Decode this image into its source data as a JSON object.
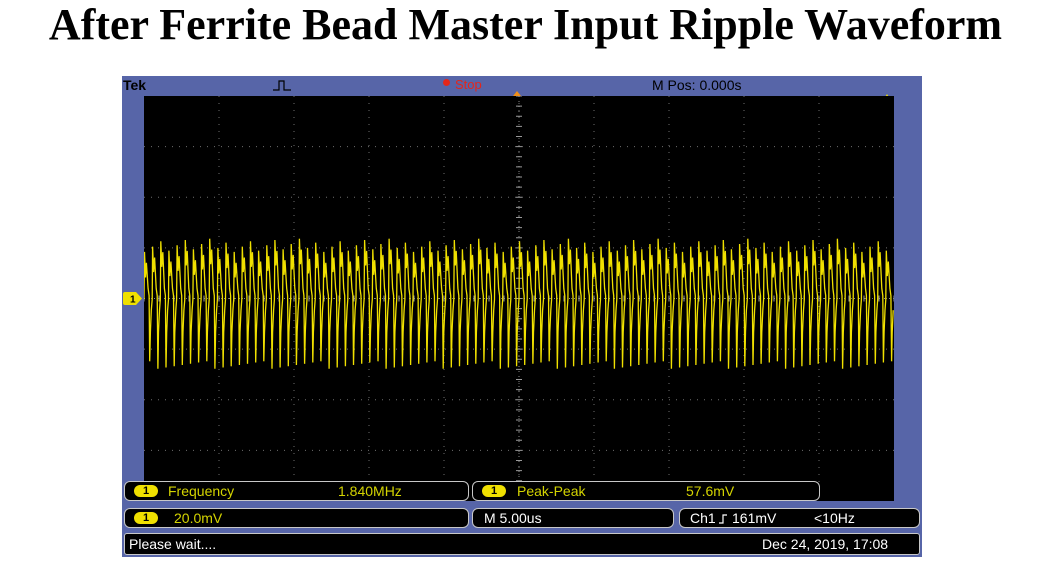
{
  "title": "After Ferrite Bead Master Input Ripple Waveform",
  "scope": {
    "brand": "Tek",
    "run_state": "Stop",
    "horizontal_position": "M Pos: 0.000s",
    "trigger_mode_icon": "pulse-icon",
    "trigger_position_icon": "trigger-position-icon",
    "channel_marker": "1",
    "colors": {
      "frame": "#5765a8",
      "trace": "#f0e000",
      "stop": "#e4261a",
      "trigger_marker": "#f0901a"
    }
  },
  "measurements": [
    {
      "channel": "1",
      "name": "Frequency",
      "value": "1.840MHz"
    },
    {
      "channel": "1",
      "name": "Peak-Peak",
      "value": "57.6mV"
    }
  ],
  "settings": {
    "channel": "1",
    "vertical_scale": "20.0mV",
    "timebase": "M 5.00us",
    "trigger": {
      "source": "Ch1",
      "slope_icon": "rising-edge-icon",
      "level": "161mV",
      "frequency": "<10Hz"
    }
  },
  "status": {
    "message": "Please wait....",
    "datetime": "Dec 24, 2019, 17:08"
  },
  "chart_data": {
    "type": "line",
    "x_unit": "us",
    "x_divisions": 10,
    "us_per_division": 5,
    "y_unit": "mV",
    "mv_per_division": 20,
    "y_divisions": 8,
    "series": [
      {
        "cycles_on_screen": 92,
        "frequency_mhz": 1.84,
        "peak_to_peak_mv": 57.6
      }
    ]
  }
}
